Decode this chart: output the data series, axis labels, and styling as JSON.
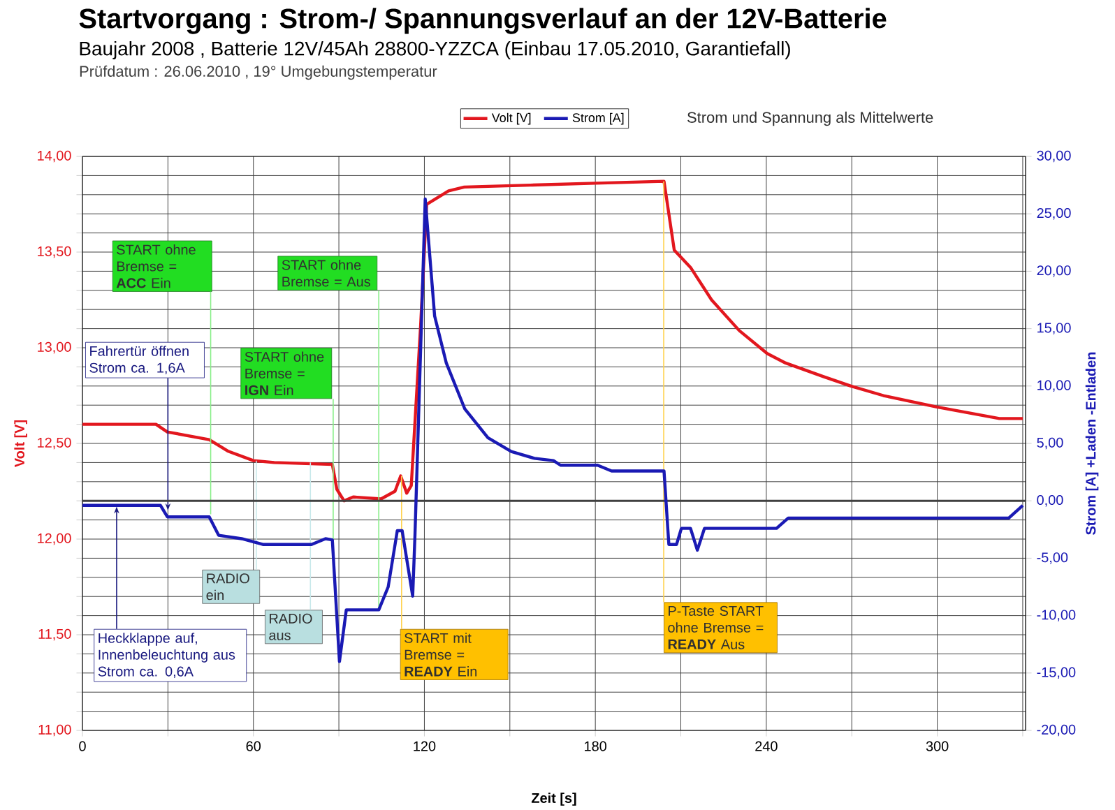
{
  "chart_data": {
    "type": "line",
    "title": "Startvorgang : Strom-/ Spannungsverlauf an der 12V-Batterie",
    "subtitle": "Baujahr 2008 , Batterie 12V/45Ah 28800-YZZCA (Einbau 17.05.2010, Garantiefall)",
    "xlabel": "Zeit [s]",
    "ylabel": "Volt [V]",
    "y2label": "Strom [A]    +Laden  -Entladen",
    "xlim": [
      0,
      331
    ],
    "ylim": [
      11,
      14
    ],
    "y2lim": [
      -20,
      30
    ],
    "xticks": [
      0,
      {
        "value": 30,
        "label": null
      },
      60,
      {
        "value": 90,
        "label": null
      },
      120,
      {
        "value": 150,
        "label": null
      },
      180,
      {
        "value": 210,
        "label": null
      },
      240,
      {
        "value": 270,
        "label": null
      },
      300,
      {
        "value": 330,
        "label": null
      }
    ],
    "yticks": [
      {
        "value": 11.0,
        "label": "11,00"
      },
      {
        "value": 11.1,
        "label": null
      },
      {
        "value": 11.2,
        "label": null
      },
      {
        "value": 11.3,
        "label": null
      },
      {
        "value": 11.4,
        "label": null
      },
      {
        "value": 11.5,
        "label": "11,50"
      },
      {
        "value": 11.6,
        "label": null
      },
      {
        "value": 11.7,
        "label": null
      },
      {
        "value": 11.8,
        "label": null
      },
      {
        "value": 11.9,
        "label": null
      },
      {
        "value": 12.0,
        "label": "12,00"
      },
      {
        "value": 12.1,
        "label": null
      },
      {
        "value": 12.2,
        "label": null
      },
      {
        "value": 12.3,
        "label": null
      },
      {
        "value": 12.4,
        "label": null
      },
      {
        "value": 12.5,
        "label": "12,50"
      },
      {
        "value": 12.6,
        "label": null
      },
      {
        "value": 12.7,
        "label": null
      },
      {
        "value": 12.8,
        "label": null
      },
      {
        "value": 12.9,
        "label": null
      },
      {
        "value": 13.0,
        "label": "13,00"
      },
      {
        "value": 13.1,
        "label": null
      },
      {
        "value": 13.2,
        "label": null
      },
      {
        "value": 13.3,
        "label": null
      },
      {
        "value": 13.4,
        "label": null
      },
      {
        "value": 13.5,
        "label": "13,50"
      },
      {
        "value": 13.6,
        "label": null
      },
      {
        "value": 13.7,
        "label": null
      },
      {
        "value": 13.8,
        "label": null
      },
      {
        "value": 13.9,
        "label": null
      },
      {
        "value": 14.0,
        "label": "14,00"
      }
    ],
    "y2ticks": [
      {
        "value": -20,
        "label": "-20,00"
      },
      {
        "value": -15,
        "label": "-15,00"
      },
      {
        "value": -10,
        "label": "-10,00"
      },
      {
        "value": -5,
        "label": "-5,00"
      },
      {
        "value": 0,
        "label": "0,00"
      },
      {
        "value": 5,
        "label": "5,00"
      },
      {
        "value": 10,
        "label": "10,00"
      },
      {
        "value": 15,
        "label": "15,00"
      },
      {
        "value": 20,
        "label": "20,00"
      },
      {
        "value": 25,
        "label": "25,00"
      },
      {
        "value": 30,
        "label": "30,00"
      }
    ],
    "grid": true,
    "legend": "top",
    "ref_lines": [
      {
        "axis": "y2",
        "value": 0,
        "color": "#404040"
      }
    ],
    "series": [
      {
        "name": "Volt [V]",
        "color": "#e2171e",
        "x": [
          0,
          25.8,
          29.8,
          44.5,
          51,
          60,
          67.3,
          87.7,
          89.3,
          91.8,
          95,
          104.8,
          109.7,
          111.7,
          113.8,
          115.4,
          118.7,
          120.8,
          128.5,
          134,
          157.2,
          180,
          204.1,
          207.7,
          213.4,
          220.8,
          230.5,
          240.3,
          246.8,
          259.9,
          269.7,
          281.1,
          299.9,
          321.8,
          330
        ],
        "values": [
          12.6,
          12.6,
          12.56,
          12.52,
          12.46,
          12.41,
          12.4,
          12.39,
          12.26,
          12.2,
          12.22,
          12.21,
          12.25,
          12.33,
          12.24,
          12.28,
          13.12,
          13.75,
          13.82,
          13.84,
          13.85,
          13.86,
          13.87,
          13.51,
          13.42,
          13.25,
          13.09,
          12.97,
          12.92,
          12.85,
          12.8,
          12.75,
          12.69,
          12.63,
          12.63
        ]
      },
      {
        "name": "Strom [A]",
        "color": "#1a1ab4",
        "axis": "y2",
        "x": [
          0,
          27.4,
          29.8,
          44.5,
          47.8,
          55.9,
          63.3,
          80.4,
          85.3,
          87.7,
          90.2,
          92.6,
          104,
          107.3,
          110.5,
          112.2,
          115.9,
          116.7,
          120.3,
          123.6,
          127.7,
          134.2,
          142.3,
          150.5,
          158.6,
          165.3,
          167.8,
          180.8,
          185.7,
          204.1,
          205.8,
          208.5,
          210.2,
          213.4,
          215.8,
          218.3,
          243.6,
          247.7,
          325.1,
          330
        ],
        "values": [
          -0.4,
          -0.4,
          -1.4,
          -1.4,
          -3.0,
          -3.3,
          -3.8,
          -3.8,
          -3.3,
          -3.4,
          -14.0,
          -9.5,
          -9.5,
          -7.5,
          -2.6,
          -2.6,
          -8.3,
          -3.0,
          26.3,
          16.1,
          12.0,
          8.0,
          5.5,
          4.3,
          3.7,
          3.5,
          3.1,
          3.1,
          2.6,
          2.6,
          -3.8,
          -3.8,
          -2.4,
          -2.4,
          -4.3,
          -2.4,
          -2.4,
          -1.5,
          -1.5,
          -0.4
        ]
      }
    ],
    "annotations": [
      "Prüfdatum    : 26.06.2010 , 19° Umgebungstemperatur",
      "Strom und Spannung als Mittelwerte",
      {
        "text": "Fahrertür öffnen Strom ca. 1,6A",
        "x": 30,
        "y": 12.15
      },
      {
        "text": "START ohne Bremse = **ACC** Ein",
        "x": 45,
        "y": 12.13
      },
      {
        "text": "START ohne Bremse = **IGN** Ein",
        "x": 88,
        "y": 12.0
      },
      {
        "text": "START ohne Bremse = Aus",
        "x": 104,
        "y": 11.63
      },
      {
        "text": "RADIO ein",
        "x": 61,
        "y": 12.41
      },
      {
        "text": "RADIO aus",
        "x": 80,
        "y": 12.4
      },
      {
        "text": "Heckklappe auf, Innenbeleuchtung aus Strom ca. 0,6A",
        "x": 12,
        "y": 12.17
      },
      {
        "text": "START mit Bremse = **READY** Ein",
        "x": 112,
        "y": 12.33
      },
      {
        "text": "P-Taste START ohne Bremse = **READY** Aus",
        "x": 204,
        "y": 13.87
      }
    ]
  }
}
